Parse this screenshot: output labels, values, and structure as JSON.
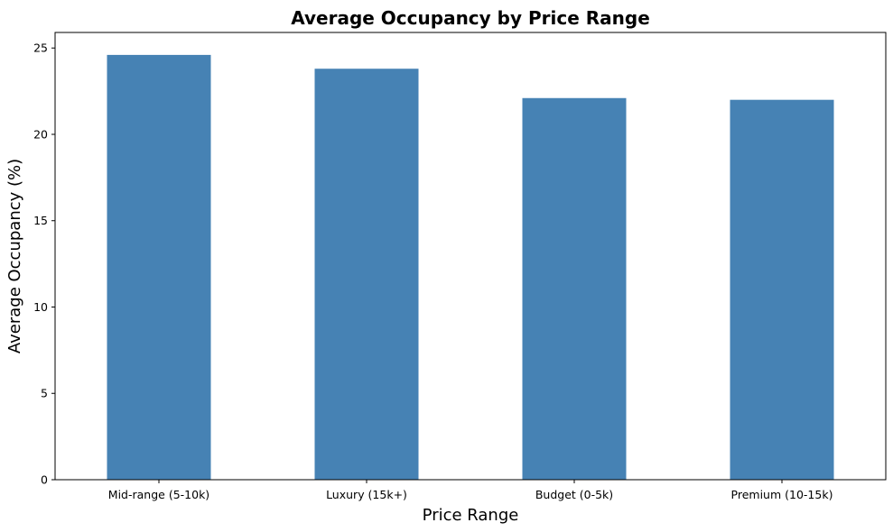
{
  "chart_data": {
    "type": "bar",
    "title": "Average Occupancy by Price Range",
    "xlabel": "Price Range",
    "ylabel": "Average Occupancy (%)",
    "categories": [
      "Mid-range (5-10k)",
      "Luxury (15k+)",
      "Budget (0-5k)",
      "Premium (10-15k)"
    ],
    "values": [
      24.6,
      23.8,
      22.1,
      22.0
    ],
    "ylim": [
      0,
      25.9
    ],
    "yticks": [
      0,
      5,
      10,
      15,
      20,
      25
    ],
    "bar_color": "#4682b4",
    "grid": false
  }
}
